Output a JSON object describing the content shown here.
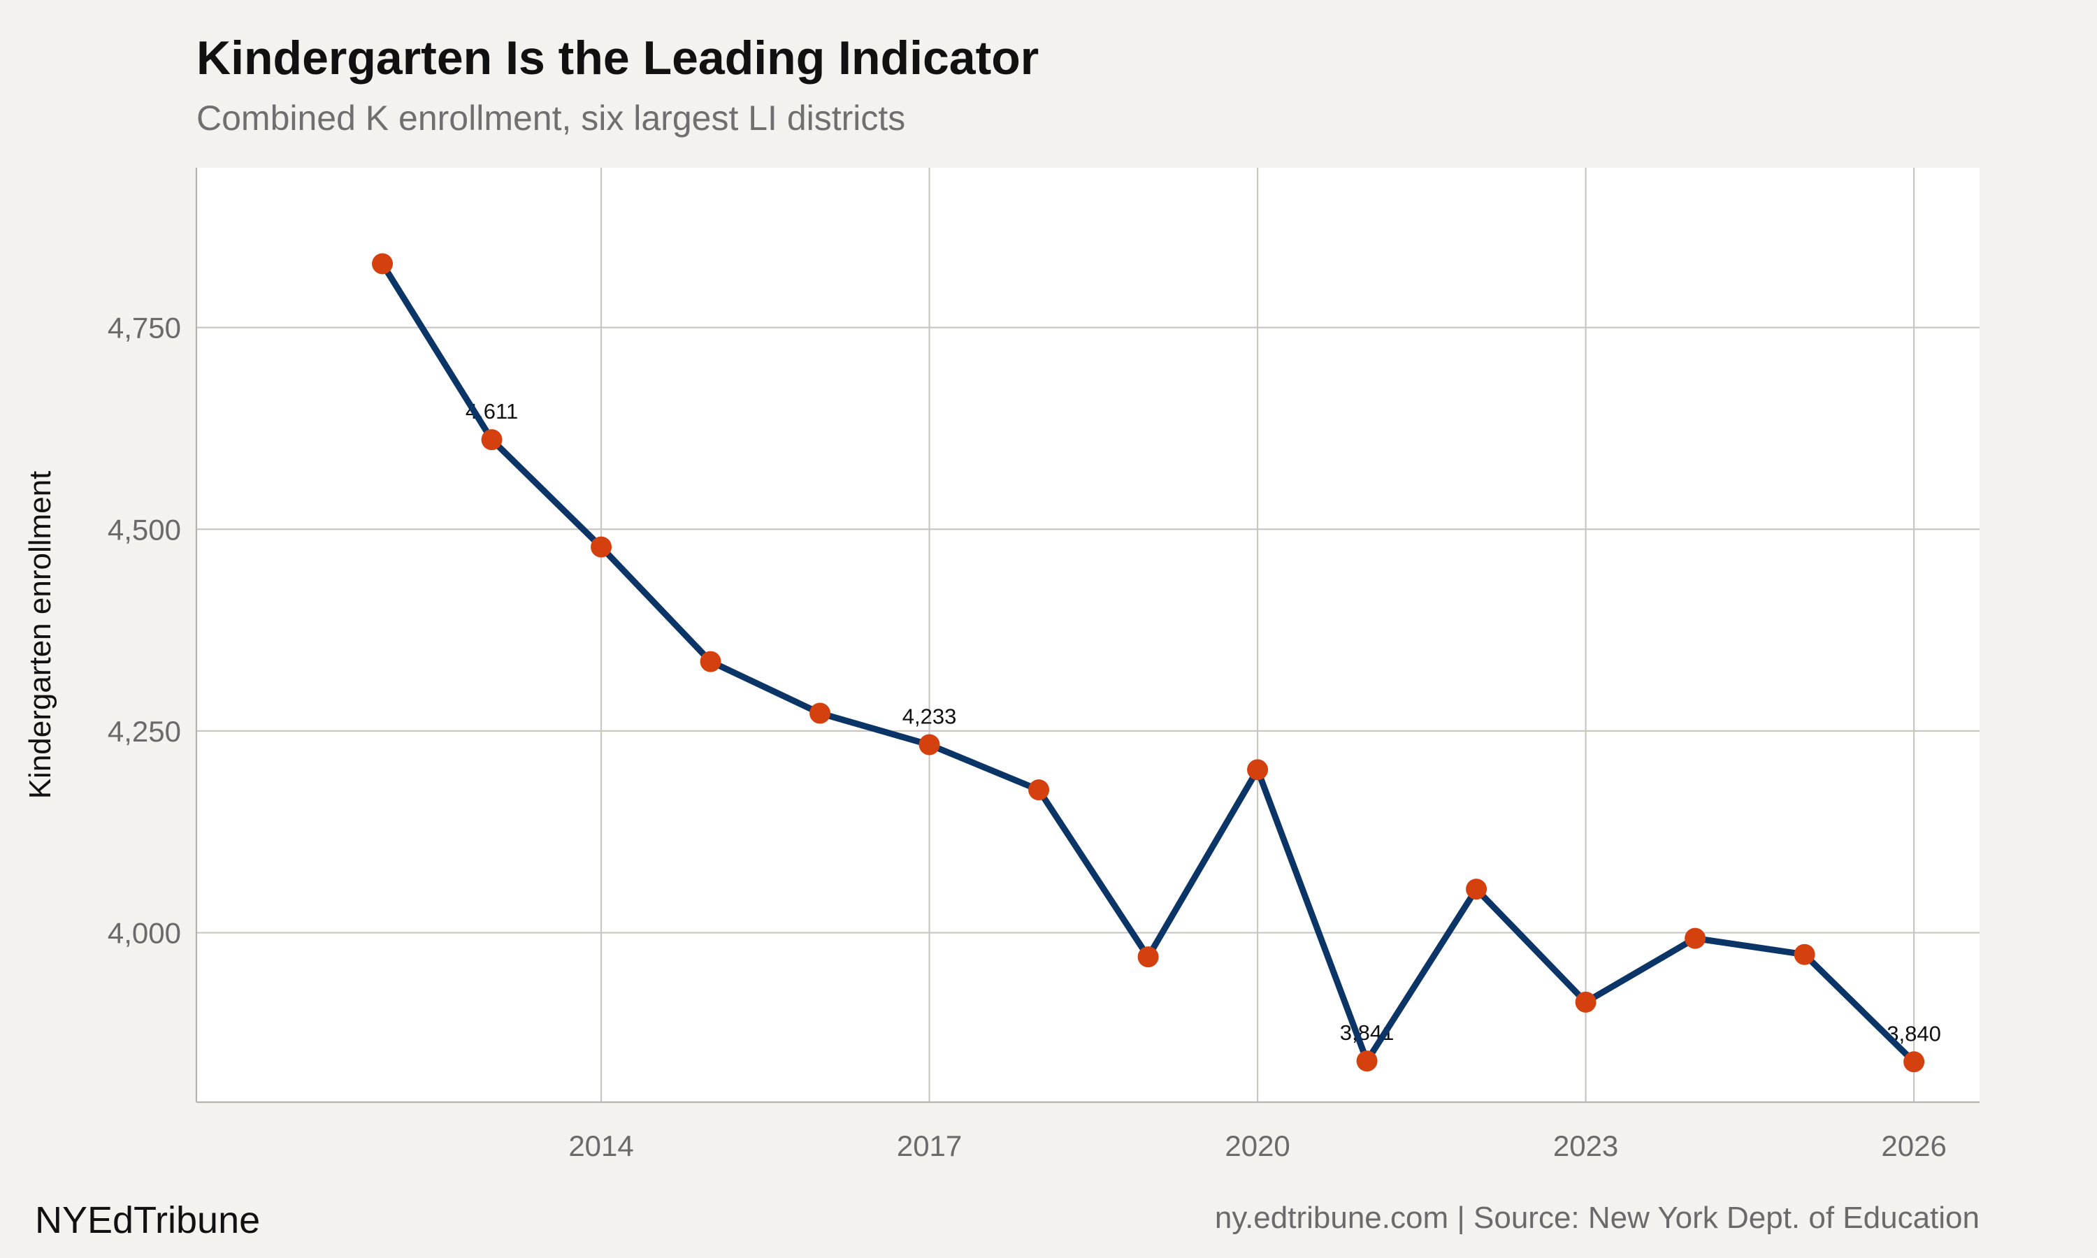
{
  "header": {
    "title": "Kindergarten Is the Leading Indicator",
    "subtitle": "Combined K enrollment, six largest LI districts"
  },
  "footer": {
    "brand": "NYEdTribune",
    "source": "ny.edtribune.com | Source: New York Dept. of Education"
  },
  "colors": {
    "background": "#f4f2ee",
    "panel": "#ffffff",
    "line": "#0b3566",
    "points": "#d4410f"
  },
  "chart_data": {
    "type": "line",
    "title": "Kindergarten Is the Leading Indicator",
    "subtitle": "Combined K enrollment, six largest LI districts",
    "xlabel": "",
    "ylabel": "Kindergarten enrollment",
    "x": [
      2012,
      2013,
      2014,
      2015,
      2016,
      2017,
      2018,
      2019,
      2020,
      2021,
      2022,
      2023,
      2024,
      2025,
      2026
    ],
    "series": [
      {
        "values": [
          4829,
          4611,
          4478,
          4336,
          4272,
          4233,
          4177,
          3970,
          4202,
          3841,
          4054,
          3914,
          3993,
          3973,
          3840
        ]
      }
    ],
    "xlim": [
      2010.3,
      2026.6
    ],
    "ylim": [
      3790,
      4948
    ],
    "xticks": [
      2014,
      2017,
      2020,
      2023,
      2026
    ],
    "xtick_labels": [
      "2014",
      "2017",
      "2020",
      "2023",
      "2026"
    ],
    "yticks": [
      4000,
      4250,
      4500,
      4750
    ],
    "ytick_labels": [
      "4,000",
      "4,250",
      "4,500",
      "4,750"
    ],
    "annotations": [
      {
        "x": 2013,
        "y": 4611,
        "text": "4,611"
      },
      {
        "x": 2017,
        "y": 4233,
        "text": "4,233"
      },
      {
        "x": 2021,
        "y": 3841,
        "text": "3,841"
      },
      {
        "x": 2026,
        "y": 3840,
        "text": "3,840"
      }
    ],
    "grid": true,
    "legend": "none"
  }
}
